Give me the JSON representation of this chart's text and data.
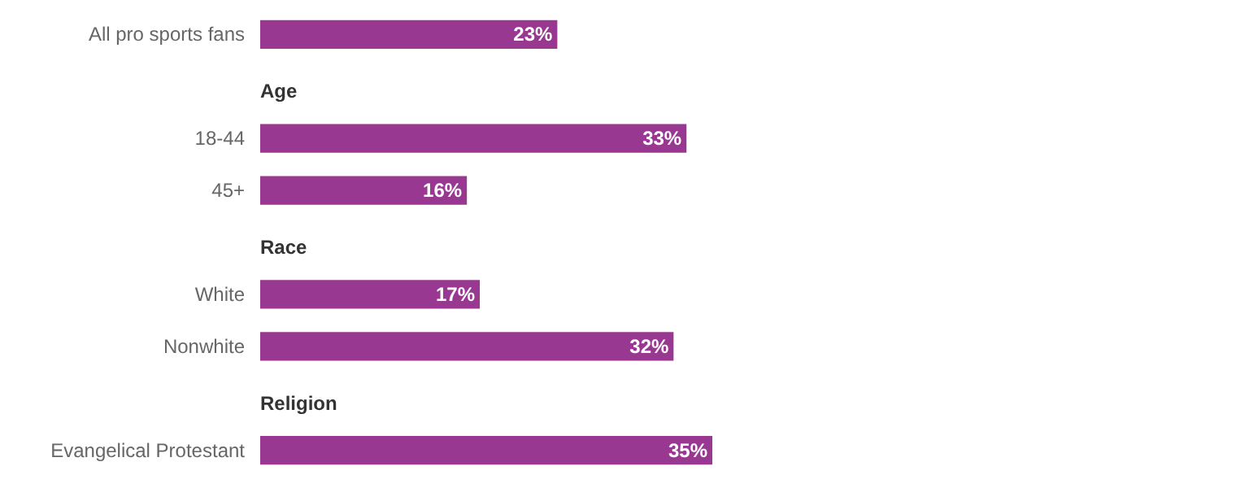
{
  "chart_data": {
    "type": "bar",
    "orientation": "horizontal",
    "categories": [
      "All pro sports fans",
      "Age",
      "18-44",
      "45+",
      "Race",
      "White",
      "Nonwhite",
      "Religion",
      "Evangelical Protestant"
    ],
    "values": [
      23,
      null,
      33,
      16,
      null,
      17,
      32,
      null,
      35
    ],
    "value_labels": [
      "23%",
      null,
      "33%",
      "16%",
      null,
      "17%",
      "32%",
      null,
      "35%"
    ],
    "color": "#993891"
  }
}
